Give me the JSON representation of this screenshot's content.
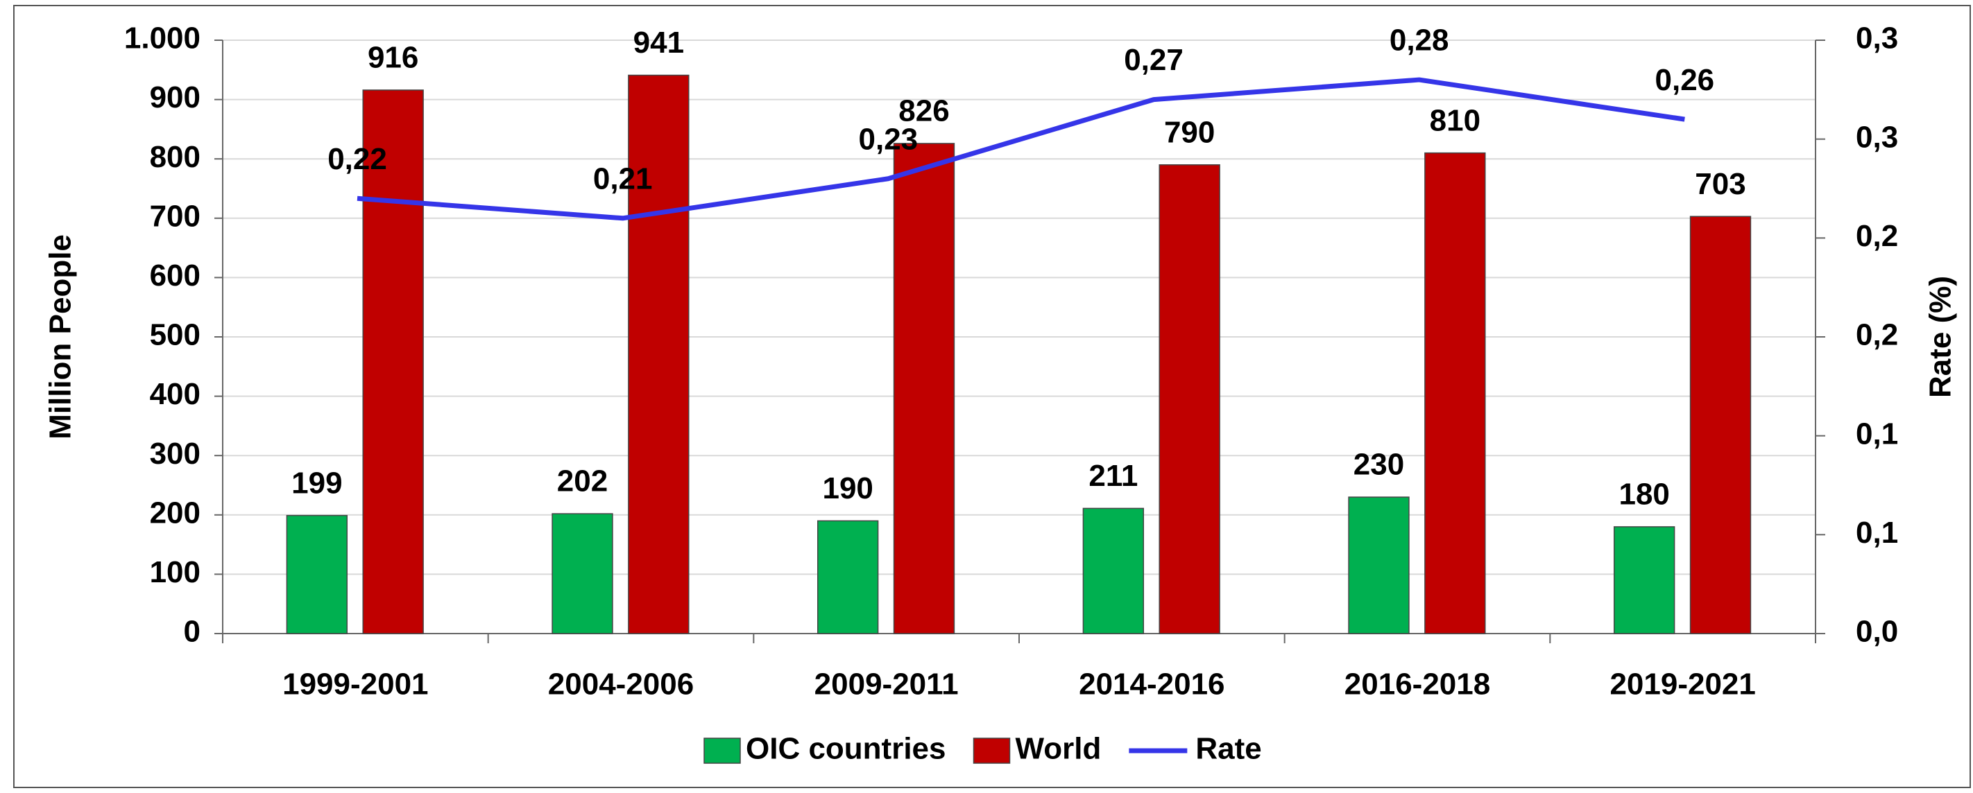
{
  "chart_data": {
    "type": "bar",
    "categories": [
      "1999-2001",
      "2004-2006",
      "2009-2011",
      "2014-2016",
      "2016-2018",
      "2019-2021"
    ],
    "series": [
      {
        "name": "OIC countries",
        "color": "#00b050",
        "values": [
          199,
          202,
          190,
          211,
          230,
          180
        ]
      },
      {
        "name": "World",
        "color": "#c00000",
        "values": [
          916,
          941,
          826,
          790,
          810,
          703
        ]
      },
      {
        "name": "Rate",
        "type": "line",
        "axis": "y2",
        "color": "#3535e8",
        "values": [
          0.22,
          0.21,
          0.23,
          0.27,
          0.28,
          0.26
        ],
        "value_labels": [
          "0,22",
          "0,21",
          "0,23",
          "0,27",
          "0,28",
          "0,26"
        ]
      }
    ],
    "ylabel": "Million People",
    "y2label": "Rate (%)",
    "ylim": [
      0,
      1000
    ],
    "yticks": [
      0,
      100,
      200,
      300,
      400,
      500,
      600,
      700,
      800,
      900,
      {
        "value": 1000,
        "label": "1.000"
      }
    ],
    "y2lim": [
      0,
      0.3
    ],
    "y2ticks": [
      {
        "value": 0,
        "label": "0,0"
      },
      {
        "value": 0.05,
        "label": "0,1"
      },
      {
        "value": 0.1,
        "label": "0,1"
      },
      {
        "value": 0.15,
        "label": "0,2"
      },
      {
        "value": 0.2,
        "label": "0,2"
      },
      {
        "value": 0.25,
        "label": "0,3"
      },
      {
        "value": 0.3,
        "label": "0,3"
      }
    ],
    "grid": true,
    "legend": "bottom"
  }
}
